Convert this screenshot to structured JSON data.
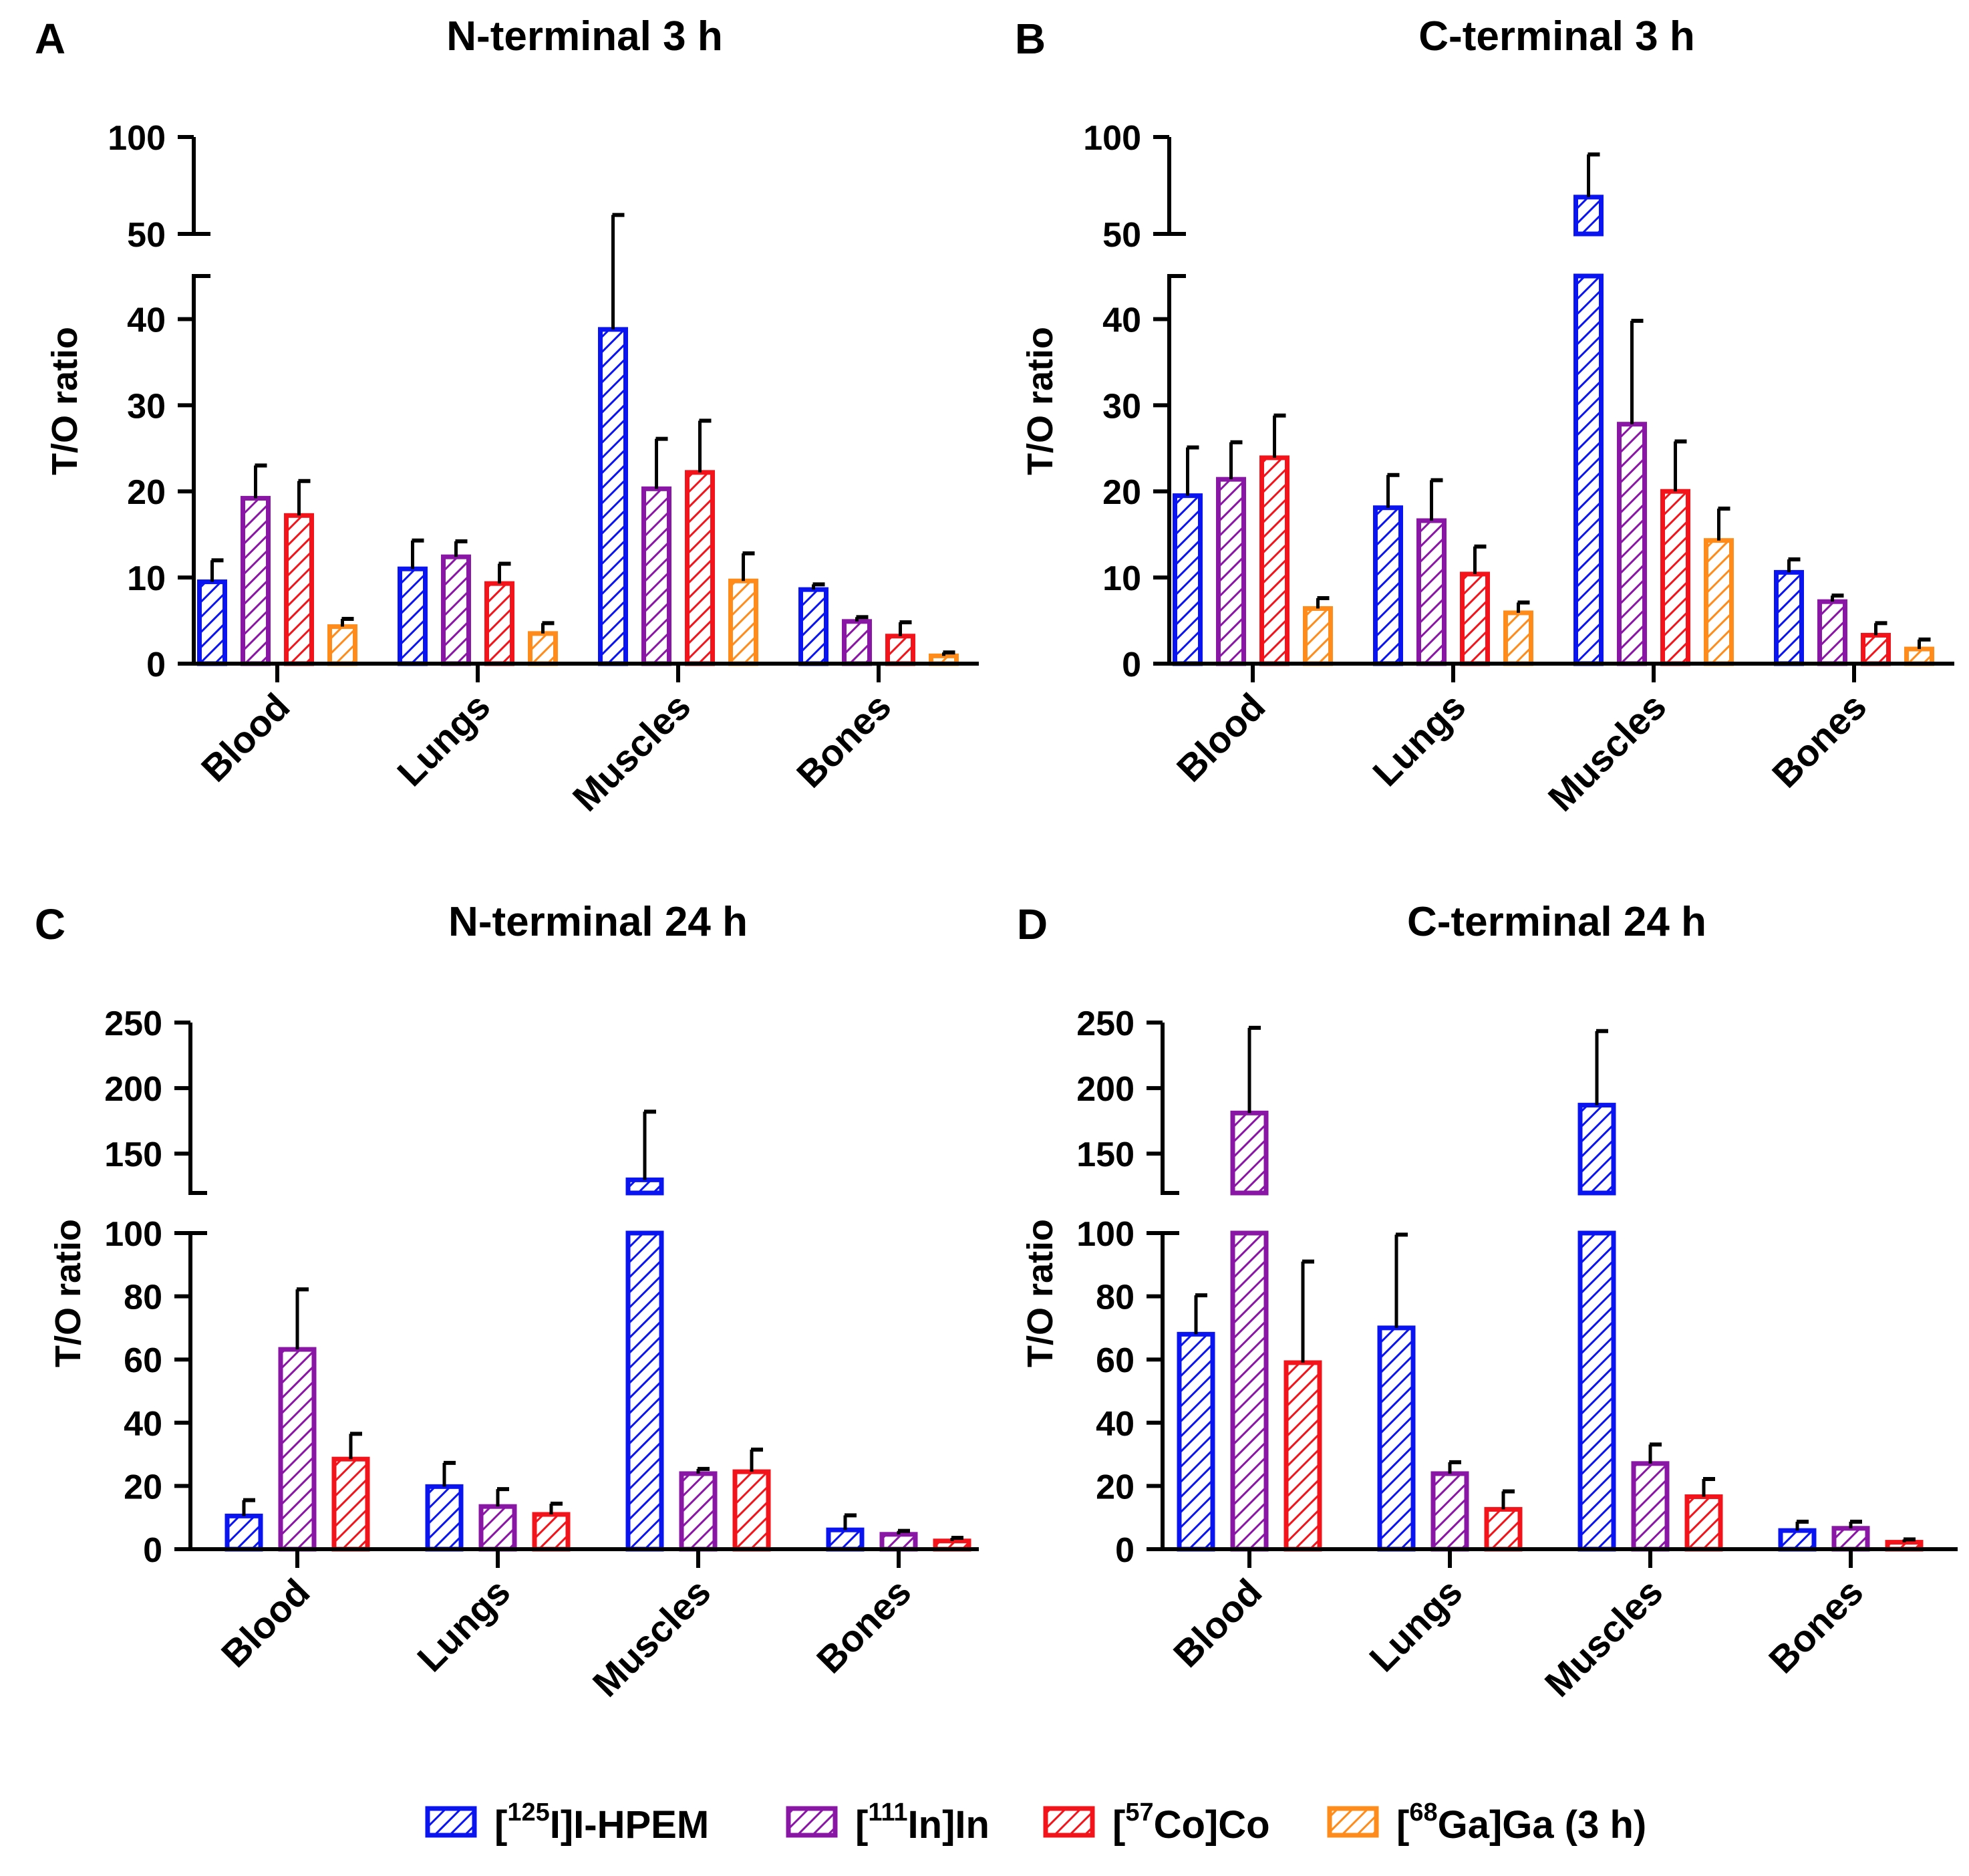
{
  "series_colors": [
    "#0a14f0",
    "#8a16a6",
    "#f2141a",
    "#ff8c1a"
  ],
  "legend": [
    {
      "pre": "[",
      "sup": "125",
      "post": "I]I-HPEM"
    },
    {
      "pre": "[",
      "sup": "111",
      "post": "In]In"
    },
    {
      "pre": "[",
      "sup": "57",
      "post": "Co]Co"
    },
    {
      "pre": "[",
      "sup": "68",
      "post": "Ga]Ga (3 h)"
    }
  ],
  "chart_data": [
    {
      "panel": "A",
      "type": "bar",
      "title": "N-terminal 3 h",
      "ylabel": "T/O ratio",
      "categories": [
        "Blood",
        "Lungs",
        "Muscles",
        "Bones"
      ],
      "axis_break": {
        "lower_range": [
          0,
          45
        ],
        "upper_range": [
          50,
          100
        ]
      },
      "lower_ticks": [
        0,
        10,
        20,
        30,
        40
      ],
      "upper_ticks": [
        50,
        100
      ],
      "series": [
        {
          "name": "[125I]I-HPEM",
          "values": [
            9.5,
            11.0,
            38.8,
            8.6
          ],
          "errors": [
            2.5,
            3.3,
            21.0,
            0.6
          ]
        },
        {
          "name": "[111In]In",
          "values": [
            19.2,
            12.4,
            20.3,
            4.9
          ],
          "errors": [
            3.8,
            1.8,
            5.8,
            0.5
          ]
        },
        {
          "name": "[57Co]Co",
          "values": [
            17.2,
            9.3,
            22.2,
            3.2
          ],
          "errors": [
            4.0,
            2.3,
            6.0,
            1.6
          ]
        },
        {
          "name": "[68Ga]Ga (3 h)",
          "values": [
            4.3,
            3.5,
            9.6,
            0.9
          ],
          "errors": [
            0.9,
            1.2,
            3.2,
            0.4
          ]
        }
      ]
    },
    {
      "panel": "B",
      "type": "bar",
      "title": "C-terminal 3 h",
      "ylabel": "T/O ratio",
      "categories": [
        "Blood",
        "Lungs",
        "Muscles",
        "Bones"
      ],
      "axis_break": {
        "lower_range": [
          0,
          45
        ],
        "upper_range": [
          50,
          100
        ]
      },
      "lower_ticks": [
        0,
        10,
        20,
        30,
        40
      ],
      "upper_ticks": [
        50,
        100
      ],
      "series": [
        {
          "name": "[125I]I-HPEM",
          "values": [
            19.5,
            18.1,
            69.0,
            10.6
          ],
          "errors": [
            5.6,
            3.8,
            22.0,
            1.5
          ]
        },
        {
          "name": "[111In]In",
          "values": [
            21.4,
            16.6,
            27.8,
            7.2
          ],
          "errors": [
            4.3,
            4.7,
            12.0,
            0.7
          ]
        },
        {
          "name": "[57Co]Co",
          "values": [
            23.9,
            10.4,
            20.0,
            3.3
          ],
          "errors": [
            4.9,
            3.2,
            5.8,
            1.4
          ]
        },
        {
          "name": "[68Ga]Ga (3 h)",
          "values": [
            6.4,
            5.9,
            14.3,
            1.7
          ],
          "errors": [
            1.2,
            1.2,
            3.7,
            1.1
          ]
        }
      ]
    },
    {
      "panel": "C",
      "type": "bar",
      "title": "N-terminal 24 h",
      "ylabel": "T/O ratio",
      "categories": [
        "Blood",
        "Lungs",
        "Muscles",
        "Bones"
      ],
      "axis_break": {
        "lower_range": [
          0,
          100
        ],
        "upper_range": [
          120,
          250
        ]
      },
      "lower_ticks": [
        0,
        20,
        40,
        60,
        80,
        100
      ],
      "upper_ticks": [
        150,
        200,
        250
      ],
      "series": [
        {
          "name": "[125I]I-HPEM",
          "values": [
            10.5,
            19.8,
            130.0,
            6.1
          ],
          "errors": [
            5.0,
            7.5,
            52.0,
            4.6
          ]
        },
        {
          "name": "[111In]In",
          "values": [
            63.2,
            13.5,
            23.9,
            4.7
          ],
          "errors": [
            19.0,
            5.5,
            1.5,
            1.1
          ]
        },
        {
          "name": "[57Co]Co",
          "values": [
            28.5,
            11.0,
            24.5,
            2.6
          ],
          "errors": [
            8.0,
            3.4,
            7.0,
            1.0
          ]
        }
      ]
    },
    {
      "panel": "D",
      "type": "bar",
      "title": "C-terminal 24 h",
      "ylabel": "T/O ratio",
      "categories": [
        "Blood",
        "Lungs",
        "Muscles",
        "Bones"
      ],
      "axis_break": {
        "lower_range": [
          0,
          100
        ],
        "upper_range": [
          120,
          250
        ]
      },
      "lower_ticks": [
        0,
        20,
        40,
        60,
        80,
        100
      ],
      "upper_ticks": [
        150,
        200,
        250
      ],
      "series": [
        {
          "name": "[125I]I-HPEM",
          "values": [
            68.0,
            70.0,
            187.0,
            5.9
          ],
          "errors": [
            12.3,
            29.5,
            56.5,
            2.8
          ]
        },
        {
          "name": "[111In]In",
          "values": [
            181.0,
            23.9,
            27.1,
            6.6
          ],
          "errors": [
            65.0,
            3.6,
            6.0,
            2.1
          ]
        },
        {
          "name": "[57Co]Co",
          "values": [
            59.0,
            12.6,
            16.6,
            2.2
          ],
          "errors": [
            32.0,
            5.7,
            5.6,
            0.9
          ]
        }
      ]
    }
  ]
}
